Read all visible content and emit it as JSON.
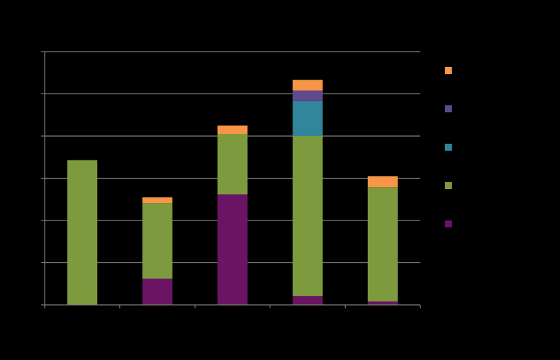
{
  "chart_data": {
    "type": "bar",
    "stacked": true,
    "categories": [
      "",
      "",
      "",
      "",
      ""
    ],
    "series": [
      {
        "color": "#6b1464",
        "values": [
          0,
          6.2,
          26.2,
          2.1,
          0.8
        ]
      },
      {
        "color": "#7e9a3e",
        "values": [
          34.3,
          17.9,
          14.3,
          37.9,
          27.1
        ]
      },
      {
        "color": "#31869b",
        "values": [
          0,
          0,
          0,
          8.3,
          0
        ]
      },
      {
        "color": "#5f4b8b",
        "values": [
          0,
          0,
          0,
          2.5,
          0
        ]
      },
      {
        "color": "#f79646",
        "values": [
          0,
          1.4,
          2.0,
          2.5,
          2.6
        ]
      }
    ],
    "ylim": [
      0,
      60
    ],
    "grid": true,
    "legend_position": "right"
  },
  "colors": {
    "background": "#000000",
    "axis": "#7f7f7f",
    "grid": "#7f7f7f"
  }
}
